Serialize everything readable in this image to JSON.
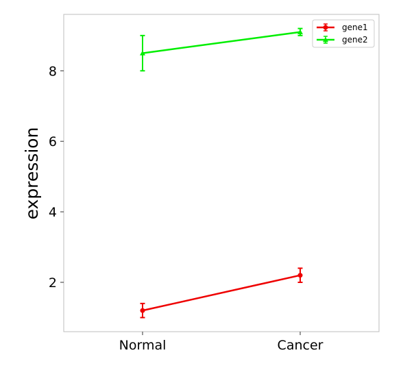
{
  "chart_data": {
    "type": "line",
    "categories": [
      "Normal",
      "Cancer"
    ],
    "ylabel": "expression",
    "ylim": [
      0.6,
      9.6
    ],
    "yticks": [
      2,
      4,
      6,
      8
    ],
    "grid": false,
    "legend": "top-right",
    "series": [
      {
        "name": "gene1",
        "color": "#ee0000",
        "marker": "circle",
        "values": [
          1.2,
          2.2
        ],
        "err_low": [
          1.0,
          2.0
        ],
        "err_high": [
          1.4,
          2.4
        ]
      },
      {
        "name": "gene2",
        "color": "#00ee00",
        "marker": "triangle",
        "values": [
          8.5,
          9.1
        ],
        "err_low": [
          8.0,
          9.0
        ],
        "err_high": [
          9.0,
          9.2
        ]
      }
    ]
  }
}
